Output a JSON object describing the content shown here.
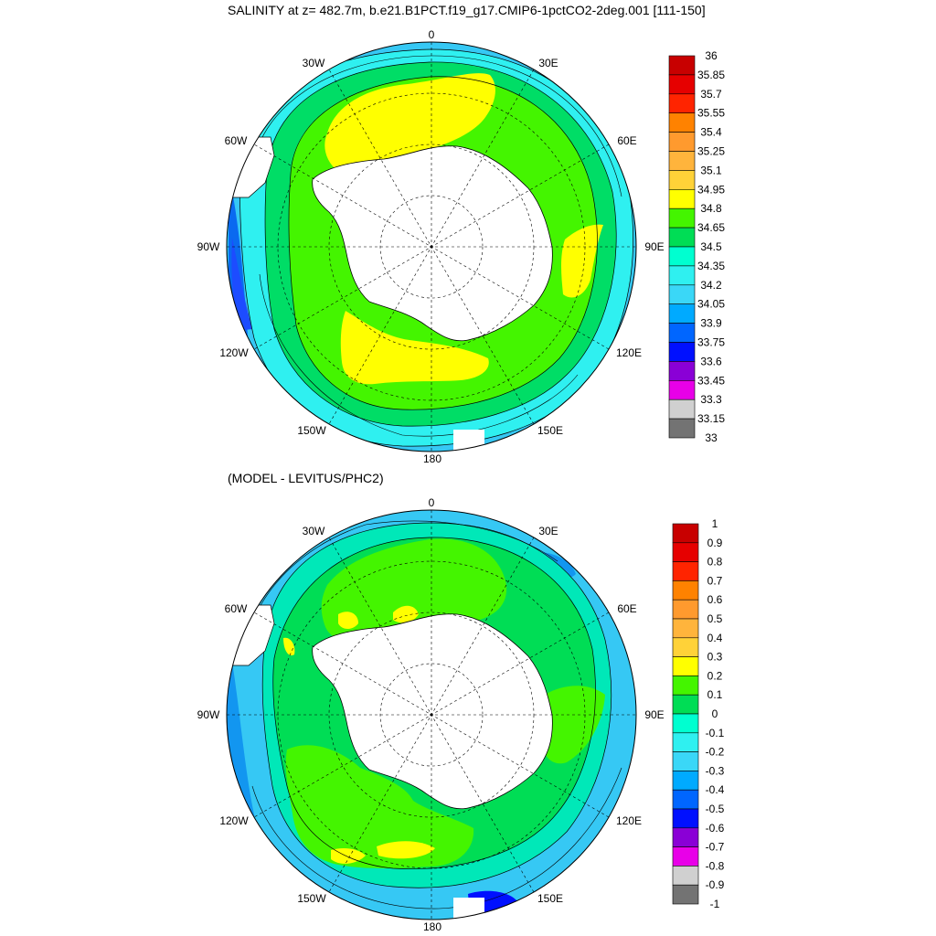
{
  "title_top": "SALINITY at z= 482.7m, b.e21.B1PCT.f19_g17.CMIP6-1pctCO2-2deg.001 [111-150]",
  "title_bottom": "(MODEL - LEVITUS/PHC2)",
  "lon_labels": {
    "lon_0": "0",
    "lon_30e": "30E",
    "lon_60e": "60E",
    "lon_90e": "90E",
    "lon_120e": "120E",
    "lon_150e": "150E",
    "lon_180": "180",
    "lon_150w": "150W",
    "lon_120w": "120W",
    "lon_90w": "90W",
    "lon_60w": "60W",
    "lon_30w": "30W"
  },
  "colors": {
    "ocean_edge": "#36c8f4",
    "land": "#ffffff",
    "contour_line": "#000000"
  },
  "map_top": {
    "colorbar": {
      "labels": [
        "36",
        "35.85",
        "35.7",
        "35.55",
        "35.4",
        "35.25",
        "35.1",
        "34.95",
        "34.8",
        "34.65",
        "34.5",
        "34.35",
        "34.2",
        "34.05",
        "33.9",
        "33.75",
        "33.6",
        "33.45",
        "33.3",
        "33.15",
        "33"
      ],
      "colors": [
        "#c80000",
        "#e60000",
        "#ff2400",
        "#ff8200",
        "#ff9a2e",
        "#ffb43c",
        "#ffd238",
        "#ffff00",
        "#44f500",
        "#00dd55",
        "#00ffd0",
        "#2ff0f0",
        "#3ad7f7",
        "#00aaff",
        "#0066ff",
        "#0010ff",
        "#8a00d6",
        "#e800e8",
        "#d0d0d0",
        "#737373"
      ]
    }
  },
  "map_bottom": {
    "colorbar": {
      "labels": [
        "1",
        "0.9",
        "0.8",
        "0.7",
        "0.6",
        "0.5",
        "0.4",
        "0.3",
        "0.2",
        "0.1",
        "0",
        "-0.1",
        "-0.2",
        "-0.3",
        "-0.4",
        "-0.5",
        "-0.6",
        "-0.7",
        "-0.8",
        "-0.9",
        "-1"
      ],
      "colors": [
        "#c80000",
        "#e60000",
        "#ff2400",
        "#ff8200",
        "#ff9a2e",
        "#ffb43c",
        "#ffd238",
        "#ffff00",
        "#44f500",
        "#00dd55",
        "#00ffd0",
        "#2ff0f0",
        "#3ad7f7",
        "#00aaff",
        "#0066ff",
        "#0010ff",
        "#8a00d6",
        "#e800e8",
        "#d0d0d0",
        "#737373"
      ]
    }
  }
}
